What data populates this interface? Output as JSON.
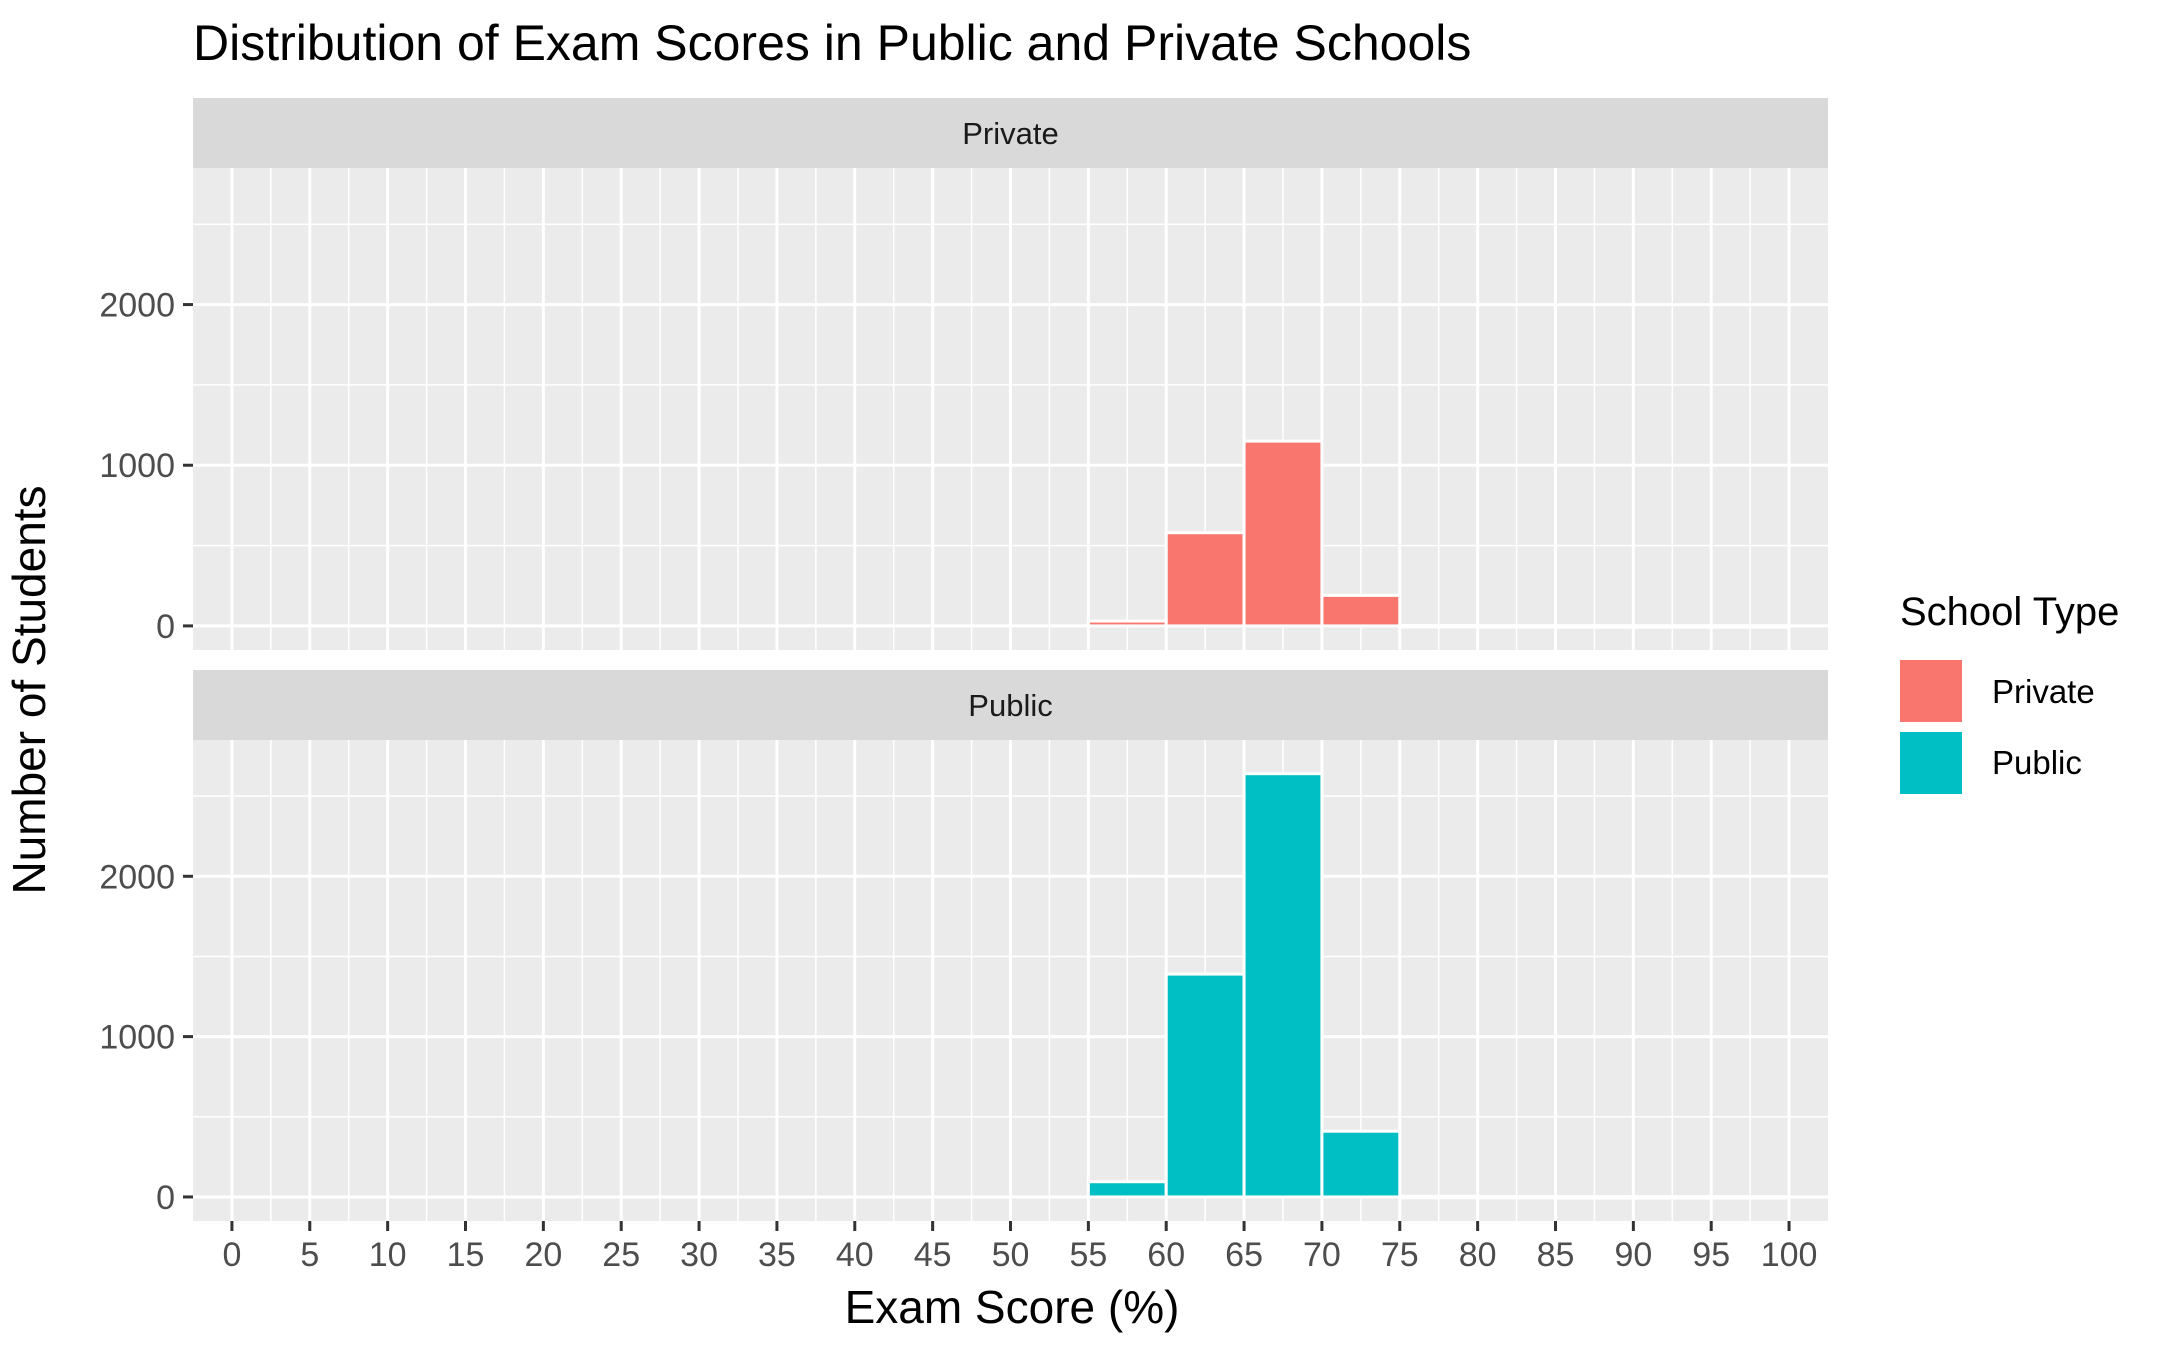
{
  "chart_data": {
    "type": "bar",
    "title": "Distribution of Exam Scores in Public and Private Schools",
    "xlabel": "Exam Score (%)",
    "ylabel": "Number of Students",
    "x_ticks": [
      0,
      5,
      10,
      15,
      20,
      25,
      30,
      35,
      40,
      45,
      50,
      55,
      60,
      65,
      70,
      75,
      80,
      85,
      90,
      95,
      100
    ],
    "y_ticks": [
      0,
      1000,
      2000
    ],
    "xlim": [
      -2.5,
      102.5
    ],
    "ylim": [
      -150,
      2850
    ],
    "grid": true,
    "legend": {
      "title": "School Type",
      "position": "right",
      "entries": [
        {
          "label": "Private",
          "color": "#F8766D"
        },
        {
          "label": "Public",
          "color": "#00BFC4"
        }
      ]
    },
    "bin_width": 5,
    "panels": [
      {
        "strip": "Private",
        "color": "#F8766D",
        "bins": [
          {
            "x0": 55,
            "x1": 60,
            "count": 30
          },
          {
            "x0": 60,
            "x1": 65,
            "count": 580
          },
          {
            "x0": 65,
            "x1": 70,
            "count": 1150
          },
          {
            "x0": 70,
            "x1": 75,
            "count": 190
          },
          {
            "x0": 75,
            "x1": 80,
            "count": 3
          },
          {
            "x0": 80,
            "x1": 85,
            "count": 2
          },
          {
            "x0": 85,
            "x1": 90,
            "count": 1
          },
          {
            "x0": 90,
            "x1": 95,
            "count": 1
          },
          {
            "x0": 95,
            "x1": 100,
            "count": 1
          }
        ]
      },
      {
        "strip": "Public",
        "color": "#00BFC4",
        "bins": [
          {
            "x0": 55,
            "x1": 60,
            "count": 95
          },
          {
            "x0": 60,
            "x1": 65,
            "count": 1390
          },
          {
            "x0": 65,
            "x1": 70,
            "count": 2640
          },
          {
            "x0": 70,
            "x1": 75,
            "count": 410
          },
          {
            "x0": 75,
            "x1": 80,
            "count": 4
          },
          {
            "x0": 80,
            "x1": 85,
            "count": 3
          },
          {
            "x0": 85,
            "x1": 90,
            "count": 2
          },
          {
            "x0": 90,
            "x1": 95,
            "count": 2
          },
          {
            "x0": 95,
            "x1": 100,
            "count": 2
          }
        ]
      }
    ]
  }
}
